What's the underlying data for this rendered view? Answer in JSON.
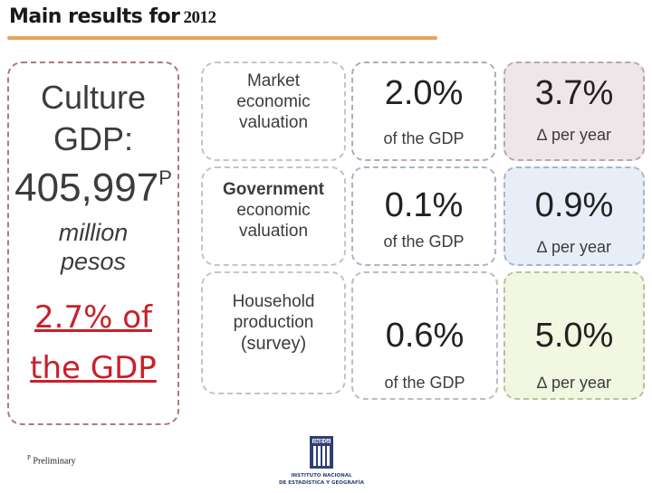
{
  "title": {
    "main": "Main results for",
    "year": "2012"
  },
  "summary": {
    "line1": "Culture",
    "line2": "GDP:",
    "amount": "405,997",
    "superscript": "P",
    "unit_line1": "million",
    "unit_line2": "pesos",
    "share_line1": "2.7% of",
    "share_line2": "the GDP"
  },
  "rows": [
    {
      "label_lines": [
        "Market",
        "economic",
        "valuation"
      ],
      "share": "2.0%",
      "share_sub": "of the GDP",
      "growth": "3.7%",
      "growth_sub": "∆ per year"
    },
    {
      "label_lines": [
        "Government",
        "economic",
        "valuation"
      ],
      "share": "0.1%",
      "share_sub": "of the GDP",
      "growth": "0.9%",
      "growth_sub": "∆ per year"
    },
    {
      "label_lines": [
        "Household",
        "production",
        "(survey)"
      ],
      "share": "0.6%",
      "share_sub": "of the GDP",
      "growth": "5.0%",
      "growth_sub": "∆ per year"
    }
  ],
  "footnote": {
    "marker": "P",
    "text": "Preliminary"
  },
  "logo": {
    "name": "INEGI",
    "line1": "INSTITUTO NACIONAL",
    "line2": "DE ESTADÍSTICA Y GEOGRAFÍA"
  },
  "colors": {
    "title_underline": "#e9a35b",
    "highlight_red": "#c8202a",
    "row1_growth_bg": "#efe6ea",
    "row2_growth_bg": "#e8eef8",
    "row3_growth_bg": "#f2f7e1"
  }
}
